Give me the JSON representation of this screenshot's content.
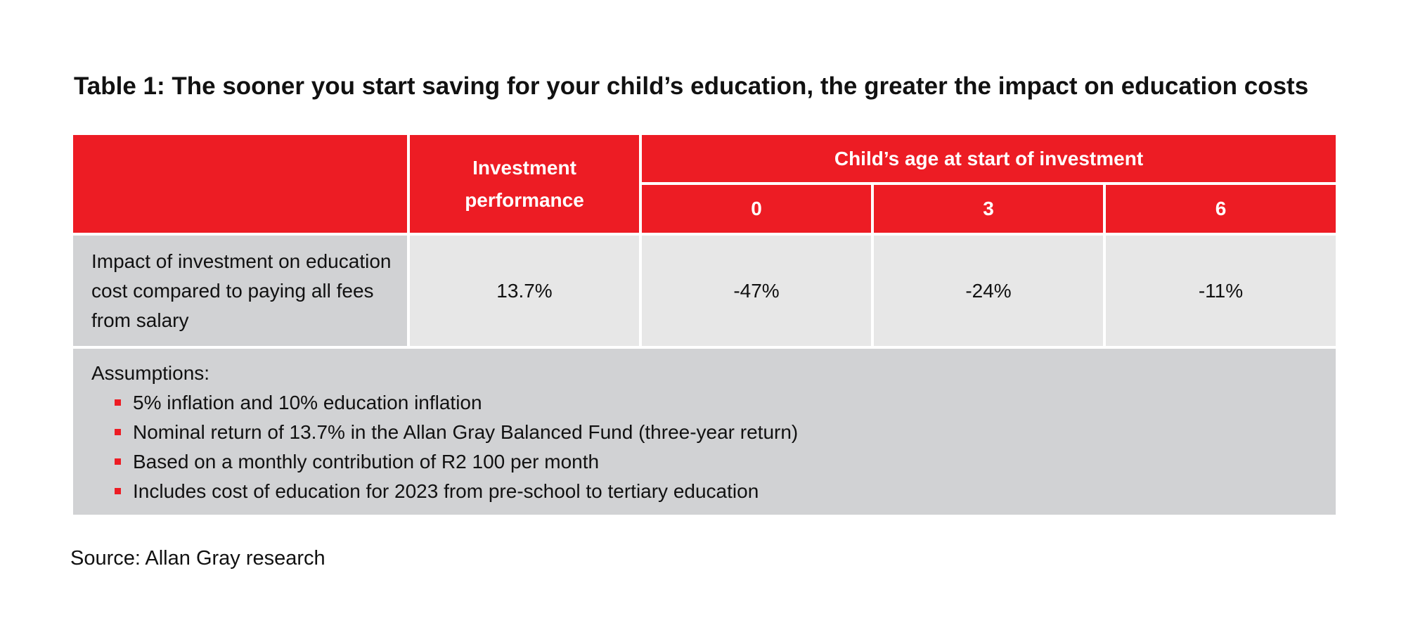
{
  "title": "Table 1: The sooner you start saving for your child’s education, the greater the impact on education costs",
  "table": {
    "header": {
      "performance_label_line1": "Investment",
      "performance_label_line2": "performance",
      "age_group_label": "Child’s age at start of investment",
      "ages": [
        "0",
        "3",
        "6"
      ]
    },
    "row": {
      "label_line1": "Impact of investment on education",
      "label_line2": "cost compared to paying all fees",
      "label_line3": "from salary",
      "performance": "13.7%",
      "values": [
        "-47%",
        "-24%",
        "-11%"
      ]
    },
    "assumptions": {
      "title": "Assumptions:",
      "items": [
        "5% inflation and 10% education inflation",
        "Nominal return of 13.7% in the Allan Gray Balanced Fund (three-year return)",
        "Based on a monthly contribution of R2 100 per month",
        "Includes cost of education for 2023 from pre-school to tertiary education"
      ]
    }
  },
  "source": "Source: Allan Gray research",
  "colors": {
    "header_red": "#ed1c24",
    "label_gray": "#d1d2d4",
    "value_gray": "#e7e7e7"
  }
}
